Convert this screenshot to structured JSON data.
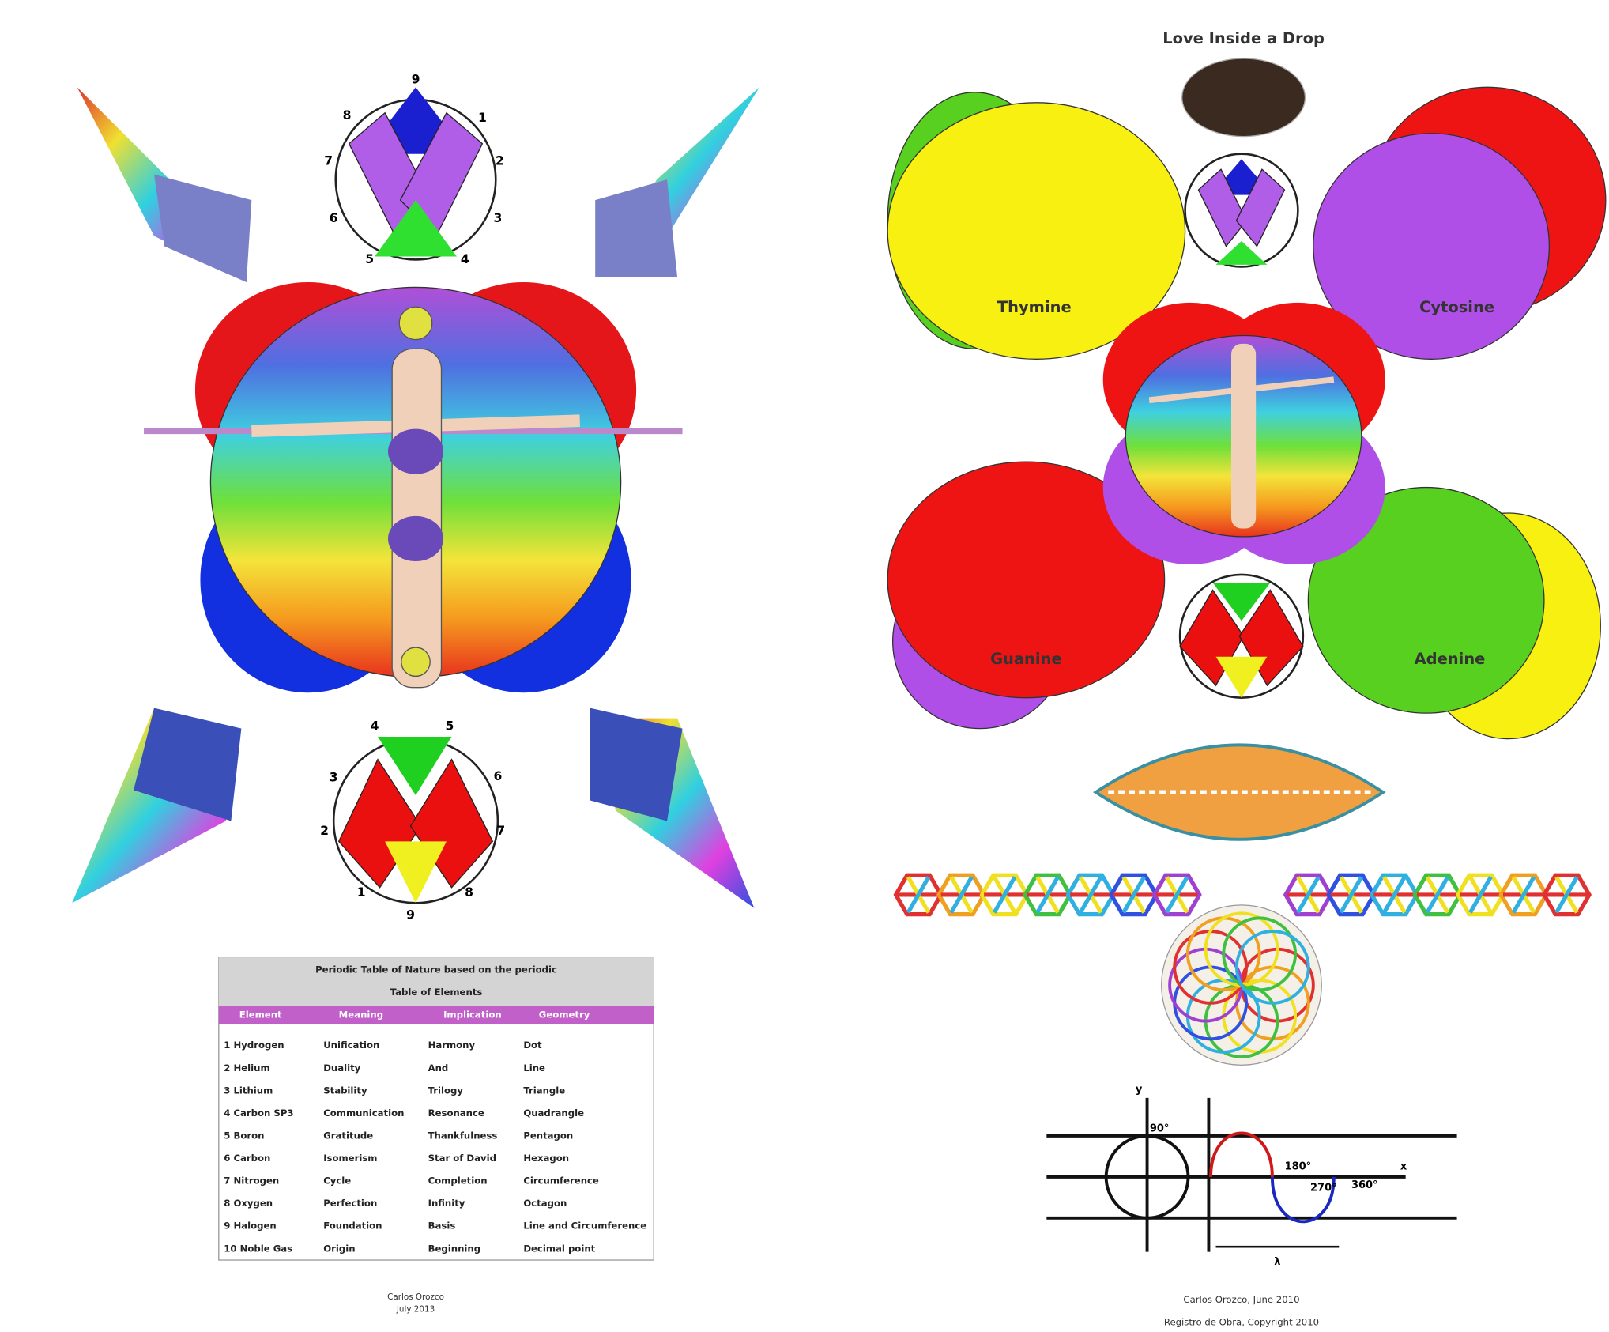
{
  "left_poster": {
    "top_circle_numbers": [
      "9",
      "1",
      "2",
      "3",
      "4",
      "5",
      "6",
      "7",
      "8"
    ],
    "bottom_circle_numbers": [
      "4",
      "5",
      "6",
      "7",
      "8",
      "9",
      "1",
      "2",
      "3"
    ],
    "table": {
      "title": "Periodic Table of Nature based on the periodic Table of Elements",
      "headers": [
        "Element",
        "Meaning",
        "Implication",
        "Geometry"
      ],
      "rows": [
        [
          "1 Hydrogen",
          "Unification",
          "Harmony",
          "Dot"
        ],
        [
          "2 Helium",
          "Duality",
          "And",
          "Line"
        ],
        [
          "3 Lithium",
          "Stability",
          "Trilogy",
          "Triangle"
        ],
        [
          "4 Carbon SP3",
          "Communication",
          "Resonance",
          "Quadrangle"
        ],
        [
          "5 Boron",
          "Gratitude",
          "Thankfulness",
          "Pentagon"
        ],
        [
          "6 Carbon",
          "Isomerism",
          "Star of David",
          "Hexagon"
        ],
        [
          "7 Nitrogen",
          "Cycle",
          "Completion",
          "Circumference"
        ],
        [
          "8 Oxygen",
          "Perfection",
          "Infinity",
          "Octagon"
        ],
        [
          "9 Halogen",
          "Foundation",
          "Basis",
          "Line and Circumference"
        ],
        [
          "10 Noble Gas",
          "Origin",
          "Beginning",
          "Decimal point"
        ]
      ]
    },
    "signature": [
      "Carlos Orozco",
      "July 2013"
    ]
  },
  "right_poster": {
    "title": "Love Inside a Drop",
    "bases": [
      "Thymine",
      "Cytosine",
      "Guanine",
      "Adenine"
    ],
    "graph_labels": [
      "y",
      "x",
      "90°",
      "180°",
      "270°",
      "360°",
      "λ"
    ],
    "credits": [
      "Carlos Orozco, June 2010",
      "Registro de Obra, Copyright 2010"
    ]
  }
}
